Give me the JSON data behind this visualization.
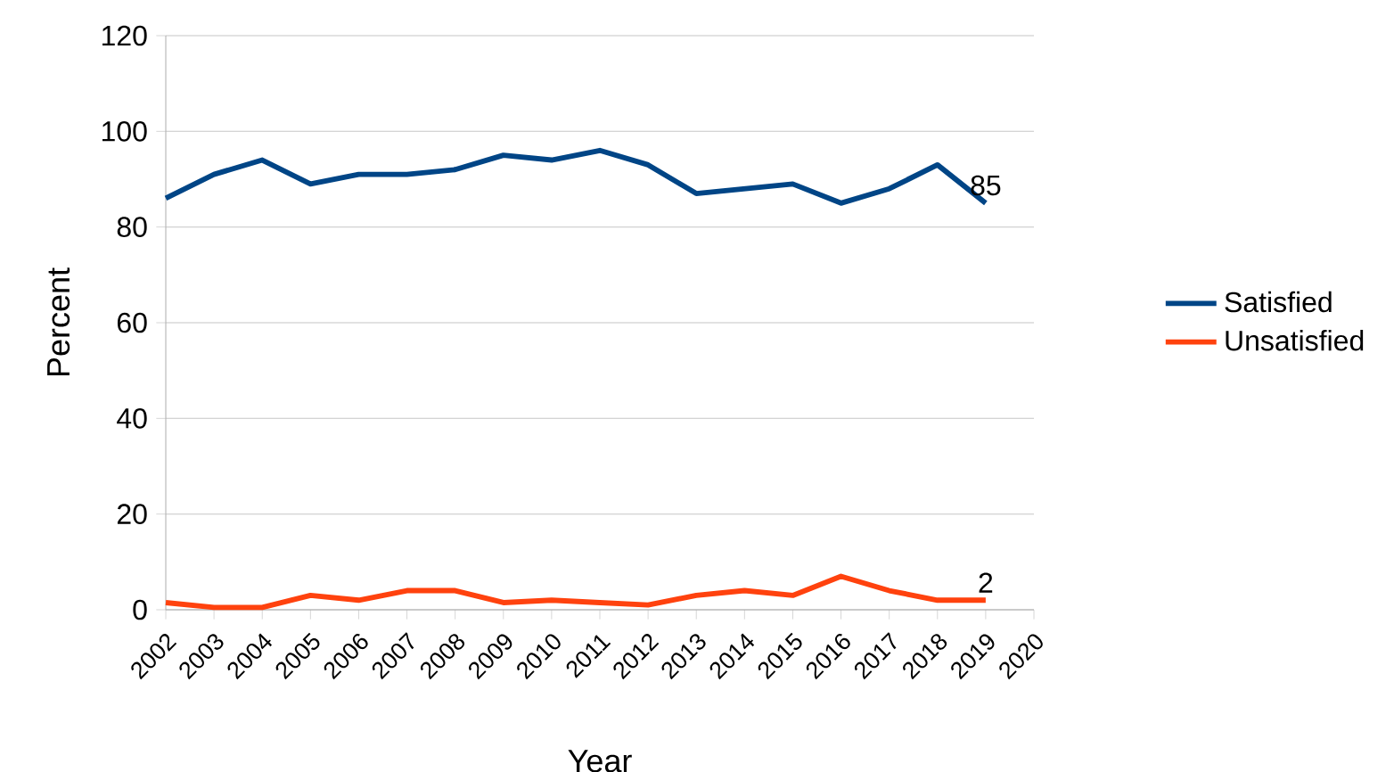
{
  "chart_data": {
    "type": "line",
    "xlabel": "Year",
    "ylabel": "Percent",
    "x": [
      2002,
      2003,
      2004,
      2005,
      2006,
      2007,
      2008,
      2009,
      2010,
      2011,
      2012,
      2013,
      2014,
      2015,
      2016,
      2017,
      2018,
      2019
    ],
    "xlim": [
      2002,
      2020
    ],
    "xticks": [
      2002,
      2003,
      2004,
      2005,
      2006,
      2007,
      2008,
      2009,
      2010,
      2011,
      2012,
      2013,
      2014,
      2015,
      2016,
      2017,
      2018,
      2019,
      2020
    ],
    "ylim": [
      0,
      120
    ],
    "yticks": [
      0,
      20,
      40,
      60,
      80,
      100,
      120
    ],
    "grid": "y",
    "legend": "right",
    "marker": "none",
    "line_style": "solid",
    "series": [
      {
        "name": "Satisfied",
        "color": "#004586",
        "values": [
          86,
          91,
          94,
          89,
          91,
          91,
          92,
          95,
          94,
          96,
          93,
          87,
          88,
          89,
          85,
          88,
          93,
          85
        ],
        "value_labels": [
          null,
          null,
          null,
          null,
          null,
          null,
          null,
          null,
          null,
          null,
          null,
          null,
          null,
          null,
          null,
          null,
          null,
          "85"
        ]
      },
      {
        "name": "Unsatisfied",
        "color": "#ff420e",
        "values": [
          1.5,
          0.5,
          0.5,
          3,
          2,
          4,
          4,
          1.5,
          2,
          1.5,
          1,
          3,
          4,
          3,
          7,
          4,
          2,
          2
        ],
        "value_labels": [
          null,
          null,
          null,
          null,
          null,
          null,
          null,
          null,
          null,
          null,
          null,
          null,
          null,
          null,
          null,
          null,
          null,
          "2"
        ]
      }
    ]
  }
}
